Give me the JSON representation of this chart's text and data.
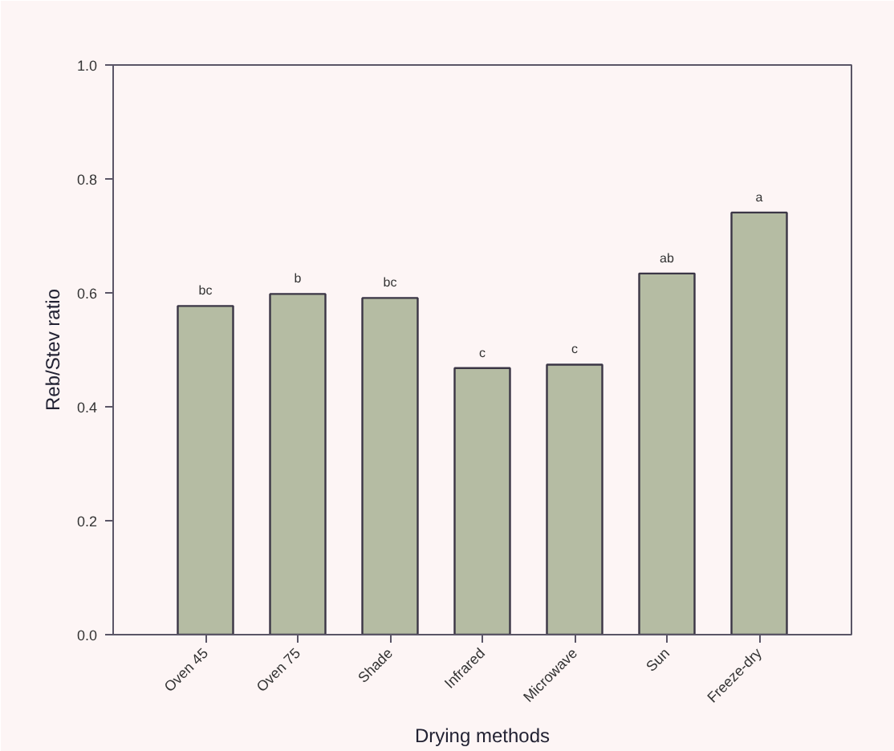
{
  "chart_data": {
    "type": "bar",
    "xlabel": "Drying methods",
    "ylabel": "Reb/Stev ratio",
    "categories": [
      "Oven 45",
      "Oven 75",
      "Shade",
      "Infrared",
      "Microwave",
      "Sun",
      "Freeze-dry"
    ],
    "values": [
      0.577,
      0.598,
      0.591,
      0.468,
      0.474,
      0.634,
      0.741
    ],
    "color": "#b5bca3",
    "ylim": [
      0,
      1.0
    ],
    "yticks": [
      {
        "value": 0,
        "label": "0.0"
      },
      0.2,
      0.4,
      0.6,
      0.8,
      {
        "value": 1,
        "label": "1.0"
      }
    ],
    "grid": false,
    "annotations": [
      {
        "text": "bc",
        "x": "Oven 45",
        "y": 0.577
      },
      {
        "text": "b",
        "x": "Oven 75",
        "y": 0.598
      },
      {
        "text": "bc",
        "x": "Shade",
        "y": 0.591
      },
      {
        "text": "c",
        "x": "Infrared",
        "y": 0.468
      },
      {
        "text": "c",
        "x": "Microwave",
        "y": 0.474
      },
      {
        "text": "ab",
        "x": "Sun",
        "y": 0.634
      },
      {
        "text": "a",
        "x": "Freeze-dry",
        "y": 0.741
      }
    ]
  }
}
